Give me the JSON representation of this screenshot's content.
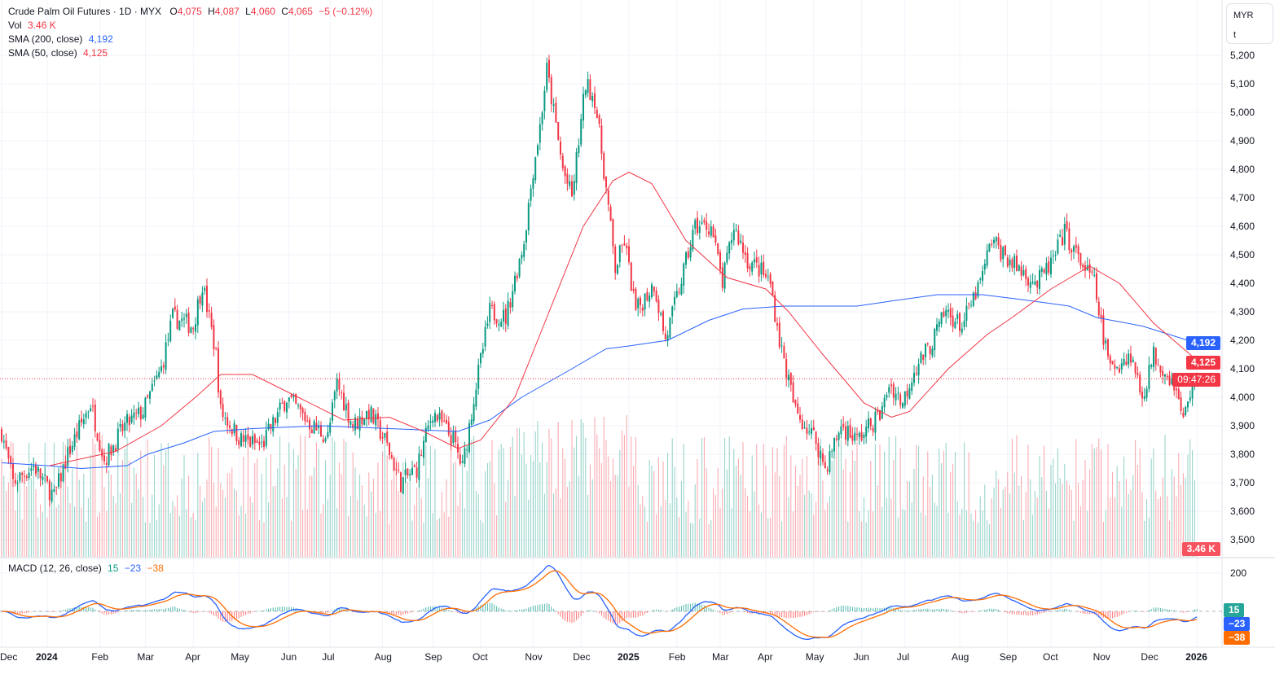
{
  "header": {
    "symbol": "Crude Palm Oil Futures · 1D · MYX",
    "o_label": "O",
    "open": "4,075",
    "h_label": "H",
    "high": "4,087",
    "l_label": "L",
    "low": "4,060",
    "c_label": "C",
    "close": "4,065",
    "change": "−5 (−0.12%)",
    "vol_label": "Vol",
    "vol_value": "3.46 K",
    "sma200_label": "SMA (200, close)",
    "sma200_value": "4,192",
    "sma50_label": "SMA (50, close)",
    "sma50_value": "4,125",
    "macd_label": "MACD (12, 26, close)",
    "macd_hist": "15",
    "macd_line": "−23",
    "macd_signal": "−38"
  },
  "unit": {
    "currency": "MYR",
    "unit": "t"
  },
  "tags": {
    "sma200": "4,192",
    "sma50": "4,125",
    "countdown": "09:47:26",
    "volume": "3.46 K",
    "hist": "15",
    "macd": "−23",
    "signal": "−38"
  },
  "colors": {
    "up": "#089981",
    "down": "#f23645",
    "sma200": "#2962ff",
    "sma50": "#f23645",
    "macd": "#2962ff",
    "signal": "#ff6d00"
  },
  "chart_data": {
    "type": "candlestick",
    "title": "Crude Palm Oil Futures · 1D · MYX",
    "price_ticks": [
      "5,200",
      "5,100",
      "5,000",
      "4,900",
      "4,800",
      "4,700",
      "4,600",
      "4,500",
      "4,400",
      "4,300",
      "4,200",
      "4,100",
      "4,000",
      "3,900",
      "3,800",
      "3,700",
      "3,600",
      "3,500"
    ],
    "ylim": [
      3480,
      5230
    ],
    "macd_ticks": [
      "200"
    ],
    "time_labels": [
      {
        "t": 0,
        "label": "Dec"
      },
      {
        "t": 20,
        "label": "2024",
        "bold": true
      },
      {
        "t": 43,
        "label": "Feb"
      },
      {
        "t": 63,
        "label": "Mar"
      },
      {
        "t": 84,
        "label": "Apr"
      },
      {
        "t": 104,
        "label": "May"
      },
      {
        "t": 126,
        "label": "Jun"
      },
      {
        "t": 144,
        "label": "Jul"
      },
      {
        "t": 167,
        "label": "Aug"
      },
      {
        "t": 189,
        "label": "Sep"
      },
      {
        "t": 210,
        "label": "Oct"
      },
      {
        "t": 233,
        "label": "Nov"
      },
      {
        "t": 254,
        "label": "Dec"
      },
      {
        "t": 275,
        "label": "2025",
        "bold": true
      },
      {
        "t": 296,
        "label": "Feb"
      },
      {
        "t": 315,
        "label": "Mar"
      },
      {
        "t": 335,
        "label": "Apr"
      },
      {
        "t": 356,
        "label": "May"
      },
      {
        "t": 377,
        "label": "Jun"
      },
      {
        "t": 396,
        "label": "Jul"
      },
      {
        "t": 420,
        "label": "Aug"
      },
      {
        "t": 441,
        "label": "Sep"
      },
      {
        "t": 460,
        "label": "Oct"
      },
      {
        "t": 482,
        "label": "Nov"
      },
      {
        "t": 503,
        "label": "Dec"
      },
      {
        "t": 524,
        "label": "2026",
        "bold": true
      }
    ],
    "close_path": [
      [
        0,
        3880
      ],
      [
        5,
        3700
      ],
      [
        14,
        3760
      ],
      [
        23,
        3650
      ],
      [
        29,
        3800
      ],
      [
        39,
        3980
      ],
      [
        45,
        3780
      ],
      [
        54,
        3900
      ],
      [
        62,
        3950
      ],
      [
        70,
        4100
      ],
      [
        75,
        4280
      ],
      [
        84,
        4250
      ],
      [
        88,
        4400
      ],
      [
        94,
        4150
      ],
      [
        96,
        3950
      ],
      [
        105,
        3850
      ],
      [
        114,
        3830
      ],
      [
        125,
        4000
      ],
      [
        136,
        3900
      ],
      [
        143,
        3860
      ],
      [
        147,
        4050
      ],
      [
        154,
        3900
      ],
      [
        161,
        3950
      ],
      [
        168,
        3850
      ],
      [
        175,
        3700
      ],
      [
        182,
        3750
      ],
      [
        189,
        3950
      ],
      [
        198,
        3850
      ],
      [
        202,
        3750
      ],
      [
        207,
        4000
      ],
      [
        214,
        4300
      ],
      [
        221,
        4280
      ],
      [
        229,
        4550
      ],
      [
        233,
        4800
      ],
      [
        236,
        4950
      ],
      [
        239,
        5150
      ],
      [
        246,
        4800
      ],
      [
        250,
        4700
      ],
      [
        256,
        5100
      ],
      [
        260,
        5050
      ],
      [
        264,
        4800
      ],
      [
        269,
        4450
      ],
      [
        273,
        4550
      ],
      [
        278,
        4300
      ],
      [
        286,
        4400
      ],
      [
        291,
        4200
      ],
      [
        296,
        4350
      ],
      [
        304,
        4600
      ],
      [
        311,
        4600
      ],
      [
        316,
        4400
      ],
      [
        321,
        4600
      ],
      [
        327,
        4480
      ],
      [
        332,
        4450
      ],
      [
        337,
        4400
      ],
      [
        341,
        4200
      ],
      [
        348,
        3950
      ],
      [
        357,
        3850
      ],
      [
        361,
        3750
      ],
      [
        368,
        3900
      ],
      [
        375,
        3850
      ],
      [
        386,
        3950
      ],
      [
        389,
        4050
      ],
      [
        395,
        3980
      ],
      [
        400,
        4100
      ],
      [
        407,
        4180
      ],
      [
        414,
        4300
      ],
      [
        421,
        4250
      ],
      [
        429,
        4400
      ],
      [
        434,
        4550
      ],
      [
        443,
        4470
      ],
      [
        454,
        4400
      ],
      [
        461,
        4480
      ],
      [
        466,
        4580
      ],
      [
        471,
        4500
      ],
      [
        479,
        4400
      ],
      [
        482,
        4250
      ],
      [
        486,
        4100
      ],
      [
        495,
        4150
      ],
      [
        500,
        4000
      ],
      [
        505,
        4150
      ],
      [
        514,
        4050
      ],
      [
        518,
        3920
      ],
      [
        522,
        4050
      ],
      [
        524,
        4065
      ]
    ],
    "sma50_path": [
      [
        21,
        3760
      ],
      [
        50,
        3810
      ],
      [
        70,
        3900
      ],
      [
        85,
        4000
      ],
      [
        96,
        4080
      ],
      [
        110,
        4080
      ],
      [
        130,
        4000
      ],
      [
        150,
        3920
      ],
      [
        170,
        3930
      ],
      [
        185,
        3880
      ],
      [
        200,
        3820
      ],
      [
        210,
        3850
      ],
      [
        225,
        4000
      ],
      [
        240,
        4300
      ],
      [
        255,
        4600
      ],
      [
        268,
        4760
      ],
      [
        275,
        4790
      ],
      [
        285,
        4750
      ],
      [
        300,
        4550
      ],
      [
        318,
        4420
      ],
      [
        335,
        4380
      ],
      [
        345,
        4300
      ],
      [
        360,
        4150
      ],
      [
        378,
        3980
      ],
      [
        390,
        3930
      ],
      [
        398,
        3950
      ],
      [
        415,
        4100
      ],
      [
        432,
        4220
      ],
      [
        443,
        4280
      ],
      [
        460,
        4380
      ],
      [
        477,
        4460
      ],
      [
        490,
        4400
      ],
      [
        505,
        4260
      ],
      [
        524,
        4130
      ]
    ],
    "sma200_path": [
      [
        0,
        3770
      ],
      [
        20,
        3760
      ],
      [
        35,
        3750
      ],
      [
        55,
        3760
      ],
      [
        64,
        3800
      ],
      [
        80,
        3840
      ],
      [
        93,
        3880
      ],
      [
        110,
        3890
      ],
      [
        140,
        3900
      ],
      [
        170,
        3890
      ],
      [
        200,
        3880
      ],
      [
        214,
        3920
      ],
      [
        228,
        4000
      ],
      [
        250,
        4100
      ],
      [
        265,
        4170
      ],
      [
        275,
        4180
      ],
      [
        292,
        4200
      ],
      [
        310,
        4270
      ],
      [
        325,
        4310
      ],
      [
        343,
        4320
      ],
      [
        375,
        4320
      ],
      [
        392,
        4340
      ],
      [
        410,
        4360
      ],
      [
        430,
        4360
      ],
      [
        450,
        4340
      ],
      [
        468,
        4320
      ],
      [
        480,
        4280
      ],
      [
        500,
        4250
      ],
      [
        524,
        4190
      ]
    ],
    "last_volume": "3.46K"
  }
}
